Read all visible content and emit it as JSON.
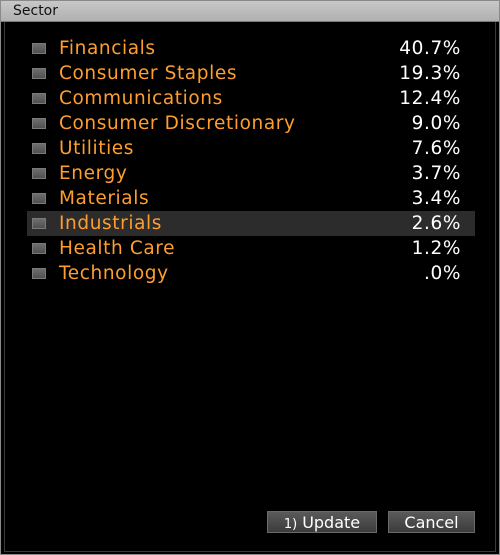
{
  "window": {
    "title": "Sector"
  },
  "sectors": [
    {
      "label": "Financials",
      "value": "40.7%"
    },
    {
      "label": "Consumer Staples",
      "value": "19.3%"
    },
    {
      "label": "Communications",
      "value": "12.4%"
    },
    {
      "label": "Consumer Discretionary",
      "value": "9.0%"
    },
    {
      "label": "Utilities",
      "value": "7.6%"
    },
    {
      "label": "Energy",
      "value": "3.7%"
    },
    {
      "label": "Materials",
      "value": "3.4%"
    },
    {
      "label": "Industrials",
      "value": "2.6%"
    },
    {
      "label": "Health Care",
      "value": "1.2%"
    },
    {
      "label": "Technology",
      "value": ".0%"
    }
  ],
  "highlighted_sector": "Industrials",
  "buttons": {
    "update_number": "1)",
    "update_label": "Update",
    "cancel_label": "Cancel"
  },
  "colors": {
    "label": "#ff9e2e",
    "value": "#ffffff",
    "background": "#000000"
  }
}
